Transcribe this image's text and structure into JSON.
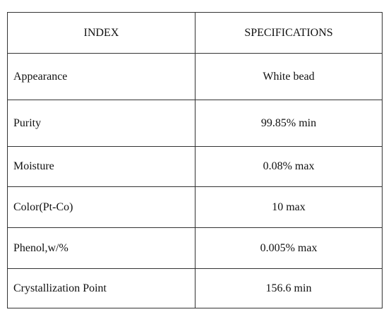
{
  "table": {
    "header": [
      "INDEX",
      "SPECIFICATIONS"
    ],
    "rows": [
      [
        "Appearance",
        "White bead"
      ],
      [
        "Purity",
        "99.85% min"
      ],
      [
        "Moisture",
        "0.08% max"
      ],
      [
        "Color(Pt-Co)",
        "10 max"
      ],
      [
        "Phenol,w/%",
        "0.005% max"
      ],
      [
        "Crystallization Point",
        "156.6 min"
      ]
    ]
  }
}
